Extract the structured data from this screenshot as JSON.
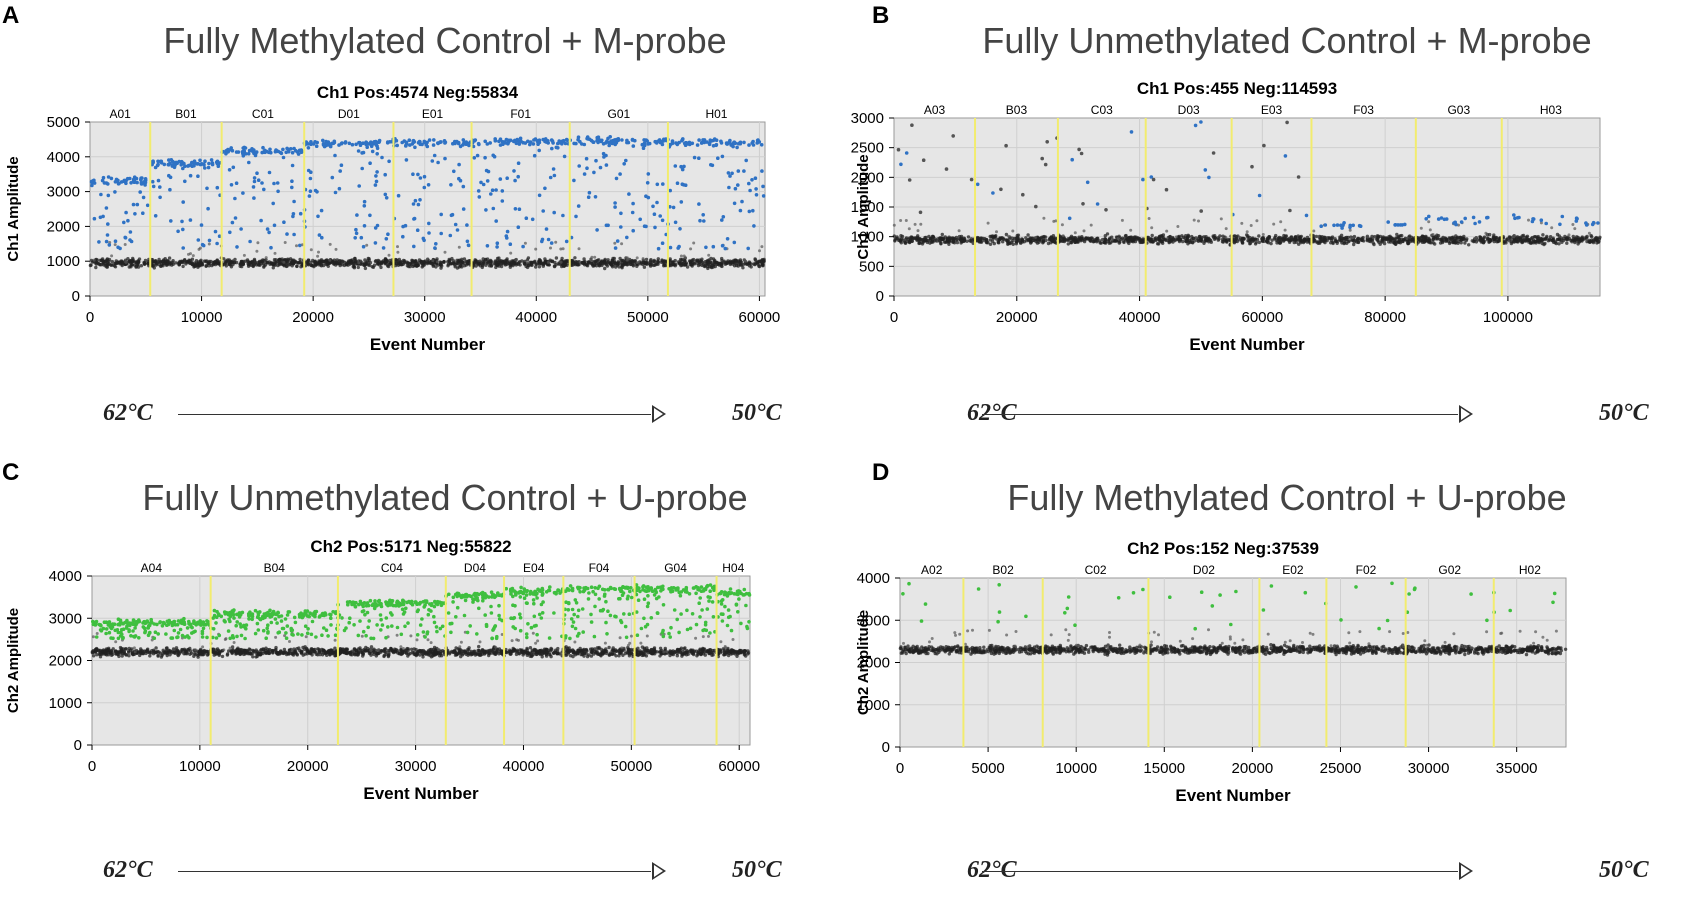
{
  "colors": {
    "methylated_probe": "#2f72c4",
    "unmethylated_probe": "#3fbf3f",
    "negative_droplet": "#222222",
    "well_divider": "#f2ec6e",
    "plot_background": "#e6e6e6",
    "grid": "#cfcfcf",
    "title_text": "#444444"
  },
  "chart_data": [
    {
      "panel": "A",
      "type": "scatter",
      "title": "Fully Methylated Control + M-probe",
      "subtitle": "Ch1 Pos:4574 Neg:55834",
      "xlabel": "Event Number",
      "ylabel": "Ch1 Amplitude",
      "xlim": [
        0,
        60500
      ],
      "ylim": [
        0,
        5000
      ],
      "xticks": [
        0,
        10000,
        20000,
        30000,
        40000,
        50000,
        60000
      ],
      "xtick_labels": [
        "0",
        "10000",
        "20000",
        "30000",
        "40000",
        "50000",
        "60000"
      ],
      "yticks": [
        0,
        1000,
        2000,
        3000,
        4000,
        5000
      ],
      "ytick_labels": [
        "0",
        "1000",
        "2000",
        "3000",
        "4000",
        "5000"
      ],
      "positive_color": "#2f72c4",
      "wells": [
        {
          "label": "A01",
          "start": 0,
          "end": 5400,
          "pos_band": 3300
        },
        {
          "label": "B01",
          "start": 5400,
          "end": 11800,
          "pos_band": 3800
        },
        {
          "label": "C01",
          "start": 11800,
          "end": 19200,
          "pos_band": 4150
        },
        {
          "label": "D01",
          "start": 19200,
          "end": 27200,
          "pos_band": 4400
        },
        {
          "label": "E01",
          "start": 27200,
          "end": 34200,
          "pos_band": 4400
        },
        {
          "label": "F01",
          "start": 34200,
          "end": 43000,
          "pos_band": 4450
        },
        {
          "label": "G01",
          "start": 43000,
          "end": 51800,
          "pos_band": 4450
        },
        {
          "label": "H01",
          "start": 51800,
          "end": 60500,
          "pos_band": 4400
        }
      ],
      "negative_band": 950,
      "positive_fraction": 0.4,
      "temp_start": "62°C",
      "temp_end": "50°C"
    },
    {
      "panel": "B",
      "type": "scatter",
      "title": "Fully Unmethylated Control + M-probe",
      "subtitle": "Ch1 Pos:455 Neg:114593",
      "xlabel": "Event Number",
      "ylabel": "Ch1 Amplitude",
      "xlim": [
        0,
        115000
      ],
      "ylim": [
        0,
        3000
      ],
      "xticks": [
        0,
        20000,
        40000,
        60000,
        80000,
        100000
      ],
      "xtick_labels": [
        "0",
        "20000",
        "40000",
        "60000",
        "80000",
        "100000"
      ],
      "yticks": [
        0,
        500,
        1000,
        1500,
        2000,
        2500,
        3000
      ],
      "ytick_labels": [
        "0",
        "500",
        "1000",
        "1500",
        "2000",
        "2500",
        "3000"
      ],
      "positive_color": "#2f72c4",
      "wells": [
        {
          "label": "A03",
          "start": 0,
          "end": 13200,
          "pos_band": 0
        },
        {
          "label": "B03",
          "start": 13200,
          "end": 26700,
          "pos_band": 0
        },
        {
          "label": "C03",
          "start": 26700,
          "end": 41000,
          "pos_band": 0
        },
        {
          "label": "D03",
          "start": 41000,
          "end": 55000,
          "pos_band": 0
        },
        {
          "label": "E03",
          "start": 55000,
          "end": 68000,
          "pos_band": 0
        },
        {
          "label": "F03",
          "start": 68000,
          "end": 85000,
          "pos_band": 1200
        },
        {
          "label": "G03",
          "start": 85000,
          "end": 99000,
          "pos_band": 1300
        },
        {
          "label": "H03",
          "start": 99000,
          "end": 115000,
          "pos_band": 1300
        }
      ],
      "negative_band": 950,
      "positive_fraction": 0.06,
      "temp_start": "62°C",
      "temp_end": "50°C"
    },
    {
      "panel": "C",
      "type": "scatter",
      "title": "Fully Unmethylated Control + U-probe",
      "subtitle": "Ch2 Pos:5171 Neg:55822",
      "xlabel": "Event Number",
      "ylabel": "Ch2 Amplitude",
      "xlim": [
        0,
        61000
      ],
      "ylim": [
        0,
        4000
      ],
      "xticks": [
        0,
        10000,
        20000,
        30000,
        40000,
        50000,
        60000
      ],
      "xtick_labels": [
        "0",
        "10000",
        "20000",
        "30000",
        "40000",
        "50000",
        "60000"
      ],
      "yticks": [
        0,
        1000,
        2000,
        3000,
        4000
      ],
      "ytick_labels": [
        "0",
        "1000",
        "2000",
        "3000",
        "4000"
      ],
      "positive_color": "#3fbf3f",
      "wells": [
        {
          "label": "A04",
          "start": 0,
          "end": 11000,
          "pos_band": 2900
        },
        {
          "label": "B04",
          "start": 11000,
          "end": 22800,
          "pos_band": 3100
        },
        {
          "label": "C04",
          "start": 22800,
          "end": 32800,
          "pos_band": 3350
        },
        {
          "label": "D04",
          "start": 32800,
          "end": 38200,
          "pos_band": 3550
        },
        {
          "label": "E04",
          "start": 38200,
          "end": 43700,
          "pos_band": 3650
        },
        {
          "label": "F04",
          "start": 43700,
          "end": 50300,
          "pos_band": 3700
        },
        {
          "label": "G04",
          "start": 50300,
          "end": 57900,
          "pos_band": 3700
        },
        {
          "label": "H04",
          "start": 57900,
          "end": 61000,
          "pos_band": 3600
        }
      ],
      "negative_band": 2200,
      "positive_fraction": 0.45,
      "temp_start": "62°C",
      "temp_end": "50°C"
    },
    {
      "panel": "D",
      "type": "scatter",
      "title": "Fully Methylated Control + U-probe",
      "subtitle": "Ch2 Pos:152 Neg:37539",
      "xlabel": "Event Number",
      "ylabel": "Ch2 Amplitude",
      "xlim": [
        0,
        37800
      ],
      "ylim": [
        0,
        4000
      ],
      "xticks": [
        0,
        5000,
        10000,
        15000,
        20000,
        25000,
        30000,
        35000
      ],
      "xtick_labels": [
        "0",
        "5000",
        "10000",
        "15000",
        "20000",
        "25000",
        "30000",
        "35000"
      ],
      "yticks": [
        0,
        1000,
        2000,
        3000,
        4000
      ],
      "ytick_labels": [
        "0",
        "1000",
        "2000",
        "3000",
        "4000"
      ],
      "positive_color": "#3fbf3f",
      "wells": [
        {
          "label": "A02",
          "start": 0,
          "end": 3600,
          "pos_band": 0
        },
        {
          "label": "B02",
          "start": 3600,
          "end": 8100,
          "pos_band": 0
        },
        {
          "label": "C02",
          "start": 8100,
          "end": 14100,
          "pos_band": 0
        },
        {
          "label": "D02",
          "start": 14100,
          "end": 20400,
          "pos_band": 0
        },
        {
          "label": "E02",
          "start": 20400,
          "end": 24200,
          "pos_band": 0
        },
        {
          "label": "F02",
          "start": 24200,
          "end": 28700,
          "pos_band": 0
        },
        {
          "label": "G02",
          "start": 28700,
          "end": 33700,
          "pos_band": 0
        },
        {
          "label": "H02",
          "start": 33700,
          "end": 37800,
          "pos_band": 0
        }
      ],
      "negative_band": 2300,
      "positive_fraction": 0.03,
      "temp_start": "62°C",
      "temp_end": "50°C"
    }
  ]
}
